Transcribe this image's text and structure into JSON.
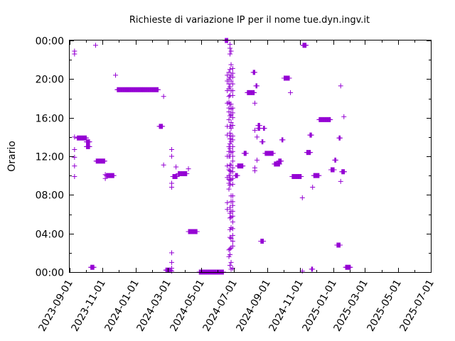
{
  "chart_data": {
    "type": "scatter",
    "title": "Richieste di variazione IP per il nome tue.dyn.ingv.it",
    "xlabel": "",
    "ylabel": "Orario",
    "marker": "+",
    "color": "#9400d3",
    "x_ticks": [
      "2023-09-01",
      "2023-11-01",
      "2024-01-01",
      "2024-03-01",
      "2024-05-01",
      "2024-07-01",
      "2024-09-01",
      "2024-11-01",
      "2025-01-01",
      "2025-03-01",
      "2025-05-01",
      "2025-07-01"
    ],
    "y_ticks": [
      "00:00",
      "04:00",
      "08:00",
      "12:00",
      "16:00",
      "20:00",
      "00:00"
    ],
    "xlim": [
      "2023-09-01",
      "2025-07-01"
    ],
    "ylim": [
      0,
      24
    ],
    "grid": false,
    "clusters": [
      {
        "from": "2023-09-10",
        "to": "2023-09-10",
        "y": [
          22.9,
          22.6,
          14.0,
          12.7,
          11.9,
          11.0,
          9.9
        ]
      },
      {
        "from": "2023-09-15",
        "to": "2023-10-02",
        "y": [
          13.9
        ]
      },
      {
        "from": "2023-10-02",
        "to": "2023-10-08",
        "y": [
          13.5,
          13.0
        ]
      },
      {
        "from": "2023-10-10",
        "to": "2023-10-16",
        "y": [
          0.5
        ]
      },
      {
        "from": "2023-10-19",
        "to": "2023-10-19",
        "y": [
          23.5
        ]
      },
      {
        "from": "2023-10-20",
        "to": "2023-11-05",
        "y": [
          11.5
        ]
      },
      {
        "from": "2023-11-06",
        "to": "2023-11-06",
        "y": [
          10.1,
          9.7
        ]
      },
      {
        "from": "2023-11-08",
        "to": "2023-11-22",
        "y": [
          10.0
        ]
      },
      {
        "from": "2023-11-25",
        "to": "2023-11-25",
        "y": [
          20.4
        ]
      },
      {
        "from": "2023-11-28",
        "to": "2024-02-12",
        "y": [
          18.9
        ]
      },
      {
        "from": "2024-02-14",
        "to": "2024-02-20",
        "y": [
          15.1
        ]
      },
      {
        "from": "2024-02-22",
        "to": "2024-02-22",
        "y": [
          18.2,
          11.1
        ]
      },
      {
        "from": "2024-02-26",
        "to": "2024-03-06",
        "y": [
          0.2
        ]
      },
      {
        "from": "2024-03-08",
        "to": "2024-03-08",
        "y": [
          12.7,
          12.0,
          9.2,
          8.8,
          2.0,
          1.0,
          0.4,
          0.1
        ]
      },
      {
        "from": "2024-03-10",
        "to": "2024-03-18",
        "y": [
          9.9
        ]
      },
      {
        "from": "2024-03-16",
        "to": "2024-03-16",
        "y": [
          10.9
        ]
      },
      {
        "from": "2024-03-20",
        "to": "2024-04-05",
        "y": [
          10.2
        ]
      },
      {
        "from": "2024-04-08",
        "to": "2024-04-08",
        "y": [
          10.7
        ]
      },
      {
        "from": "2024-04-08",
        "to": "2024-04-24",
        "y": [
          4.2
        ]
      },
      {
        "from": "2024-04-28",
        "to": "2024-06-12",
        "y": [
          0.0
        ]
      },
      {
        "from": "2024-06-15",
        "to": "2024-06-20",
        "y": [
          24.0
        ]
      },
      {
        "from": "2024-06-19",
        "to": "2024-06-19",
        "y": [
          20.4,
          19.8,
          18.8,
          17.5,
          15.1,
          14.2,
          12.0,
          11.0,
          9.8,
          7.2,
          6.5
        ]
      },
      {
        "from": "2024-06-22",
        "to": "2024-06-22",
        "y": [
          20.7,
          20.0,
          19.5,
          19.0,
          18.2,
          17.6,
          17.0,
          16.6,
          15.8,
          13.0,
          12.5,
          12.0,
          10.6,
          10.0,
          9.6,
          9.2,
          8.6,
          2.3,
          1.6
        ]
      },
      {
        "from": "2024-06-24",
        "to": "2024-06-24",
        "y": [
          23.6,
          23.2,
          22.6,
          21.0,
          20.2,
          19.2,
          18.3,
          17.4,
          16.2,
          15.1,
          14.4,
          13.8,
          13.3,
          12.8,
          12.0,
          11.1,
          10.5,
          10.0,
          9.5,
          9.0,
          6.7,
          6.1,
          5.6,
          4.4,
          3.6,
          2.4,
          1.8,
          0.7
        ]
      },
      {
        "from": "2024-06-26",
        "to": "2024-06-26",
        "y": [
          22.9,
          21.5,
          20.4,
          19.8,
          18.8,
          17.4,
          16.9,
          16.3,
          15.5,
          14.9,
          14.1,
          13.5,
          12.4,
          11.1,
          10.4,
          9.6,
          7.9,
          7.3,
          6.3,
          5.7,
          4.6,
          3.5,
          2.5,
          1.0,
          0.3
        ]
      },
      {
        "from": "2024-06-29",
        "to": "2024-06-29",
        "y": [
          21.1,
          20.6,
          20.2,
          19.5,
          18.8,
          18.3,
          17.0,
          16.5,
          16.0,
          15.2,
          14.1,
          13.7,
          13.0,
          12.5,
          12.0,
          11.5,
          10.8,
          10.4,
          9.7,
          9.1,
          7.9,
          7.3,
          6.9,
          6.3,
          5.8,
          5.2,
          4.5,
          3.8,
          3.2,
          2.7,
          0.4
        ]
      },
      {
        "from": "2024-07-04",
        "to": "2024-07-08",
        "y": [
          10.0
        ]
      },
      {
        "from": "2024-07-08",
        "to": "2024-07-18",
        "y": [
          11.0
        ]
      },
      {
        "from": "2024-07-20",
        "to": "2024-07-24",
        "y": [
          12.3
        ]
      },
      {
        "from": "2024-07-26",
        "to": "2024-08-08",
        "y": [
          18.6
        ]
      },
      {
        "from": "2024-08-06",
        "to": "2024-08-09",
        "y": [
          20.7
        ]
      },
      {
        "from": "2024-08-09",
        "to": "2024-08-09",
        "y": [
          17.5,
          14.7,
          10.8,
          10.5
        ]
      },
      {
        "from": "2024-08-11",
        "to": "2024-08-13",
        "y": [
          19.3
        ]
      },
      {
        "from": "2024-08-13",
        "to": "2024-08-13",
        "y": [
          14.0,
          11.6
        ]
      },
      {
        "from": "2024-08-15",
        "to": "2024-08-18",
        "y": [
          15.2,
          14.9
        ]
      },
      {
        "from": "2024-08-20",
        "to": "2024-08-25",
        "y": [
          3.2
        ]
      },
      {
        "from": "2024-08-22",
        "to": "2024-08-24",
        "y": [
          13.5
        ]
      },
      {
        "from": "2024-08-25",
        "to": "2024-08-27",
        "y": [
          14.9
        ]
      },
      {
        "from": "2024-08-28",
        "to": "2024-09-12",
        "y": [
          12.3
        ]
      },
      {
        "from": "2024-09-14",
        "to": "2024-09-24",
        "y": [
          11.2
        ]
      },
      {
        "from": "2024-09-22",
        "to": "2024-09-27",
        "y": [
          11.5
        ]
      },
      {
        "from": "2024-09-28",
        "to": "2024-09-30",
        "y": [
          13.7
        ]
      },
      {
        "from": "2024-10-02",
        "to": "2024-10-12",
        "y": [
          20.1
        ]
      },
      {
        "from": "2024-10-14",
        "to": "2024-10-14",
        "y": [
          18.6
        ]
      },
      {
        "from": "2024-10-17",
        "to": "2024-11-03",
        "y": [
          9.9
        ]
      },
      {
        "from": "2024-11-05",
        "to": "2024-11-05",
        "y": [
          7.7,
          0.1
        ]
      },
      {
        "from": "2024-11-06",
        "to": "2024-11-12",
        "y": [
          23.5
        ]
      },
      {
        "from": "2024-11-13",
        "to": "2024-11-20",
        "y": [
          12.4
        ]
      },
      {
        "from": "2024-11-19",
        "to": "2024-11-22",
        "y": [
          14.2
        ]
      },
      {
        "from": "2024-11-22",
        "to": "2024-11-24",
        "y": [
          0.3
        ]
      },
      {
        "from": "2024-11-24",
        "to": "2024-11-24",
        "y": [
          8.8
        ]
      },
      {
        "from": "2024-11-26",
        "to": "2024-12-06",
        "y": [
          10.0
        ]
      },
      {
        "from": "2024-12-06",
        "to": "2024-12-27",
        "y": [
          15.8
        ]
      },
      {
        "from": "2024-12-28",
        "to": "2025-01-03",
        "y": [
          10.6
        ]
      },
      {
        "from": "2025-01-04",
        "to": "2025-01-06",
        "y": [
          11.6
        ]
      },
      {
        "from": "2025-01-08",
        "to": "2025-01-14",
        "y": [
          2.8
        ]
      },
      {
        "from": "2025-01-12",
        "to": "2025-01-14",
        "y": [
          13.9
        ]
      },
      {
        "from": "2025-01-15",
        "to": "2025-01-15",
        "y": [
          19.3,
          9.4
        ]
      },
      {
        "from": "2025-01-17",
        "to": "2025-01-22",
        "y": [
          10.4
        ]
      },
      {
        "from": "2025-01-21",
        "to": "2025-01-21",
        "y": [
          16.1
        ]
      },
      {
        "from": "2025-01-24",
        "to": "2025-02-02",
        "y": [
          0.5
        ]
      }
    ]
  }
}
